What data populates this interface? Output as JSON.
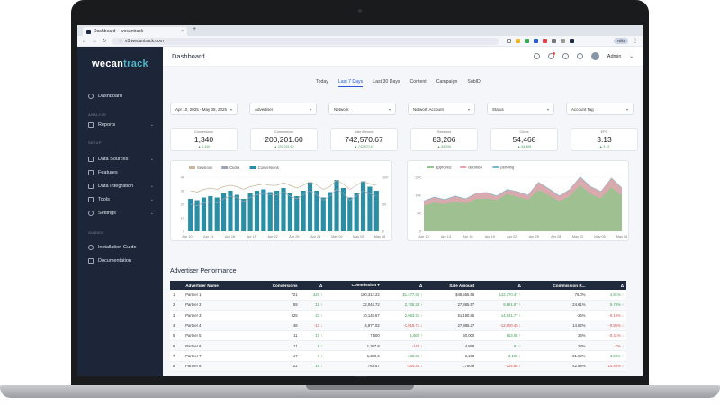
{
  "browser": {
    "tab_title": "Dashboard – wecantrack",
    "new_tab": "+",
    "url": "v3.wecantrack.com",
    "profile": "Nilo"
  },
  "sidebar": {
    "logo_part1": "wecan",
    "logo_part2": "track",
    "items": [
      {
        "label": "Dashboard",
        "icon": "dashboard-icon"
      },
      {
        "label": "Reports",
        "icon": "reports-icon"
      },
      {
        "label": "Data Sources",
        "icon": "data-sources-icon"
      },
      {
        "label": "Features",
        "icon": "features-icon"
      },
      {
        "label": "Data Integration",
        "icon": "integration-icon"
      },
      {
        "label": "Tools",
        "icon": "tools-icon"
      },
      {
        "label": "Settings",
        "icon": "settings-icon"
      },
      {
        "label": "Installation Guide",
        "icon": "guide-icon"
      },
      {
        "label": "Documentation",
        "icon": "docs-icon"
      }
    ],
    "sections": [
      "ANALYZE",
      "SETUP",
      "GUIDES"
    ]
  },
  "header": {
    "title": "Dashboard",
    "user": "Admin"
  },
  "tabs": [
    "Today",
    "Last 7 Days",
    "Last 30 Days",
    "Content",
    "Campaign",
    "SubID"
  ],
  "active_tab": "Last 7 Days",
  "filters": [
    "Apr 10, 2025 - May 08, 2025",
    "Advertiser",
    "Network",
    "Network Account",
    "Status",
    "Account Tag"
  ],
  "kpis": [
    {
      "label": "Conversions",
      "value": "1,340",
      "delta": "▲ 1,340"
    },
    {
      "label": "Commission",
      "value": "200,201.60",
      "delta": "▲ 200,201.60"
    },
    {
      "label": "Sale Amount",
      "value": "742,570.67",
      "delta": "▲ 742,570.67"
    },
    {
      "label": "Sessions",
      "value": "83,206",
      "delta": "▲ 83,206"
    },
    {
      "label": "Clicks",
      "value": "54,468",
      "delta": "▲ 54,468"
    },
    {
      "label": "EPC",
      "value": "3.13",
      "delta": "▲ 3.13"
    }
  ],
  "chart_data": [
    {
      "type": "bar",
      "legend": [
        "Sessions",
        "Clicks",
        "Conversions"
      ],
      "categories": [
        "Apr 10",
        "Apr 11",
        "Apr 12",
        "Apr 13",
        "Apr 14",
        "Apr 15",
        "Apr 16",
        "Apr 17",
        "Apr 18",
        "Apr 19",
        "Apr 20",
        "Apr 21",
        "Apr 22",
        "Apr 23",
        "Apr 24",
        "Apr 25",
        "Apr 26",
        "Apr 27",
        "Apr 28",
        "Apr 29",
        "Apr 30",
        "May 01",
        "May 02",
        "May 03",
        "May 04",
        "May 05",
        "May 06",
        "May 07",
        "May 08"
      ],
      "x_tick_labels": [
        "Apr 10",
        "Apr 13",
        "Apr 16",
        "Apr 19",
        "Apr 22",
        "Apr 25",
        "Apr 28",
        "May 02",
        "May 05",
        "May 08"
      ],
      "series": [
        {
          "name": "Conversions",
          "values": [
            24,
            23,
            25,
            26,
            25,
            28,
            30,
            27,
            24,
            28,
            30,
            31,
            29,
            30,
            32,
            28,
            26,
            30,
            36,
            30,
            25,
            29,
            38,
            32,
            25,
            28,
            37,
            33,
            30
          ]
        },
        {
          "name": "Clicks",
          "values": [
            20,
            19,
            21,
            22,
            21,
            24,
            26,
            25,
            22,
            25,
            27,
            28,
            27,
            27,
            29,
            26,
            24,
            27,
            30,
            27,
            23,
            26,
            31,
            28,
            23,
            26,
            30,
            28,
            26
          ]
        },
        {
          "name": "Sessions",
          "values": [
            30,
            29,
            31,
            32,
            31,
            33,
            34,
            33,
            31,
            33,
            34,
            35,
            34,
            34,
            36,
            34,
            32,
            34,
            37,
            34,
            31,
            33,
            38,
            35,
            31,
            34,
            37,
            35,
            34
          ]
        }
      ],
      "y_left_ticks": [
        "0",
        "10",
        "20",
        "30",
        "40"
      ],
      "y_right_ticks": [
        "0",
        "50",
        "100"
      ]
    },
    {
      "type": "area",
      "legend": [
        "approved",
        "declined",
        "pending"
      ],
      "x_tick_labels": [
        "Apr 10",
        "Apr 13",
        "Apr 16",
        "Apr 19",
        "Apr 22",
        "Apr 25",
        "Apr 28",
        "May 02",
        "May 05",
        "May 08"
      ],
      "series": [
        {
          "name": "approved",
          "values": [
            7.0,
            7.8,
            7.4,
            8.2,
            7.6,
            8.8,
            9.0,
            8.5,
            10.2,
            9.4,
            8.6,
            11.3,
            9.8,
            8.2,
            9.6,
            12.6,
            10.2,
            9.0,
            12.1,
            9.8
          ]
        },
        {
          "name": "declined",
          "values": [
            8.2,
            9.3,
            8.6,
            9.6,
            8.8,
            10.3,
            10.6,
            9.6,
            11.4,
            10.8,
            9.8,
            13.4,
            11.6,
            9.6,
            11.4,
            14.9,
            12.2,
            10.8,
            14.6,
            11.8
          ]
        },
        {
          "name": "pending",
          "values": [
            8.4,
            9.5,
            8.8,
            9.8,
            9.0,
            10.5,
            10.8,
            9.8,
            11.6,
            11.0,
            10.0,
            13.6,
            11.8,
            9.8,
            11.6,
            15.1,
            12.4,
            11.0,
            14.8,
            12.0
          ]
        }
      ],
      "y_ticks": [
        "0",
        "5K",
        "10K",
        "15K"
      ]
    }
  ],
  "performance": {
    "title": "Advertiser Performance",
    "columns": [
      "",
      "Advertiser Name",
      "Conversions",
      "Δ",
      "Commission ▾",
      "Δ",
      "Sale Amount",
      "Δ",
      "Commission R...",
      "Δ"
    ],
    "rows": [
      [
        "1",
        "Partner 1",
        "721",
        "320 ↑",
        "100,312.22",
        "$1,477.34 ↑",
        "$48,555.55",
        "142,770.47 ↑",
        "75.0%",
        "4.81% ↑"
      ],
      [
        "2",
        "Partner 2",
        "59",
        "15 ↑",
        "22,044.72",
        "2,735.33 ↑",
        "27,865.57",
        "9,681.07 ↑",
        "24.61%",
        "5.78% ↑"
      ],
      [
        "3",
        "Partner 3",
        "325",
        "21 ↑",
        "10,148.67",
        "2,063.31 ↑",
        "51,190.85",
        "14,641.77 ↑",
        "-25%",
        "-0.19% ↓"
      ],
      [
        "4",
        "Partner 4",
        "48",
        "-13 ↓",
        "4,977.02",
        "-1,918.71 ↓",
        "27,885.27",
        "-12,000.45 ↓",
        "14.82%",
        "-0.85% ↓"
      ],
      [
        "5",
        "Partner 5",
        "11",
        "10 ↑",
        "7,500",
        "1,660 ↑",
        "50,000",
        "653.08 ↑",
        "25%",
        "-0.31% ↓"
      ],
      [
        "6",
        "Partner 6",
        "11",
        "6 ↑",
        "1,207.8",
        "-144 ↓",
        "4,868",
        "61 ↑",
        "23%",
        "-7% ↓"
      ],
      [
        "7",
        "Partner 7",
        "17",
        "7 ↑",
        "1,330.6",
        "435.35 ↑",
        "6,153",
        "2,100 ↑",
        "21.58%",
        "4.59% ↑"
      ],
      [
        "8",
        "Partner 8",
        "22",
        "16 ↑",
        "763.57",
        "-334.35 ↓",
        "1,780.6",
        "-125.58 ↓",
        "42.89%",
        "-14.48% ↓"
      ]
    ]
  },
  "colors": {
    "sidebar_bg": "#1c2638",
    "bar": "#2a8fa5",
    "line": "#c9b79a",
    "approved": "#8cc88a",
    "declined": "#e8a3a3",
    "pending": "#7ab6cd",
    "accent": "#2a5bd7"
  }
}
